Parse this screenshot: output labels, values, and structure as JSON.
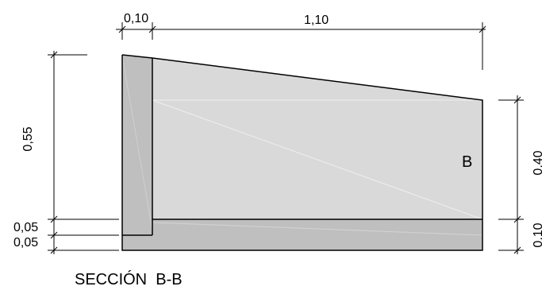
{
  "drawing": {
    "title": "SECCIÓN  B-B",
    "region_label": "B",
    "dimensions": {
      "top_left": "0,10",
      "top_right": "1,10",
      "left_height": "0,55",
      "left_lower_1": "0,05",
      "left_lower_2": "0,05",
      "right_height": "0,40",
      "right_lower": "0,10"
    },
    "colors": {
      "light_fill": "#d9d9d9",
      "dark_fill": "#bfbfbf",
      "line": "#000000"
    }
  }
}
